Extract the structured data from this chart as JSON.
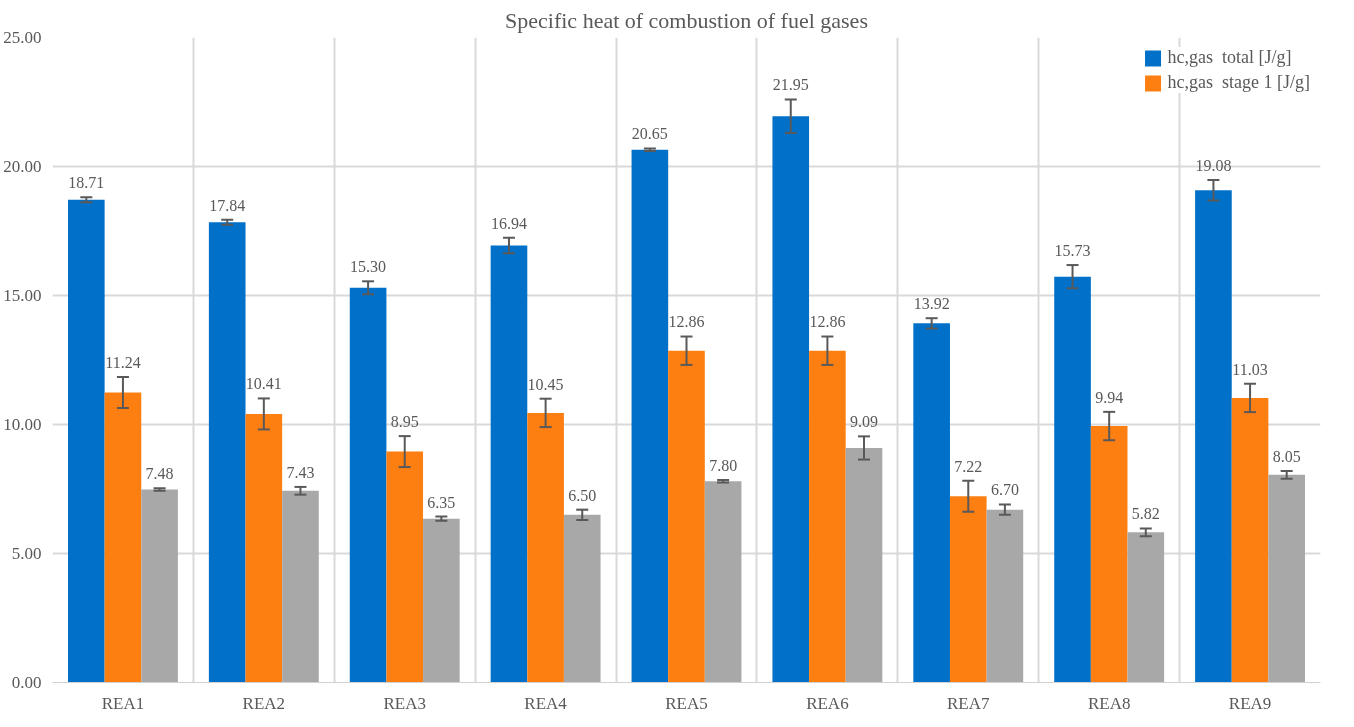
{
  "chart_data": {
    "type": "bar",
    "title": "Specific heat of combustion of fuel gases",
    "categories": [
      "REA1",
      "REA2",
      "REA3",
      "REA4",
      "REA5",
      "REA6",
      "REA7",
      "REA8",
      "REA9"
    ],
    "series": [
      {
        "name": "hc,gas  total [J/g]",
        "color": "#0070c8",
        "values": [
          18.71,
          17.84,
          15.3,
          16.94,
          20.65,
          21.95,
          13.92,
          15.73,
          19.08
        ],
        "errors": [
          0.1,
          0.1,
          0.25,
          0.3,
          0.05,
          0.65,
          0.2,
          0.45,
          0.4
        ],
        "value_labels": [
          "18.71",
          "17.84",
          "15.30",
          "16.94",
          "20.65",
          "21.95",
          "13.92",
          "15.73",
          "19.08"
        ]
      },
      {
        "name": "hc,gas  stage 1 [J/g]",
        "color": "#fd7f12",
        "values": [
          11.24,
          10.41,
          8.95,
          10.45,
          12.86,
          12.86,
          7.22,
          9.94,
          11.03
        ],
        "errors": [
          0.6,
          0.6,
          0.6,
          0.55,
          0.55,
          0.55,
          0.6,
          0.55,
          0.55
        ],
        "value_labels": [
          "11.24",
          "10.41",
          "8.95",
          "10.45",
          "12.86",
          "12.86",
          "7.22",
          "9.94",
          "11.03"
        ]
      },
      {
        "color": "#a8a8a8",
        "values": [
          7.48,
          7.43,
          6.35,
          6.5,
          7.8,
          9.09,
          6.7,
          5.82,
          8.05
        ],
        "errors": [
          0.05,
          0.15,
          0.08,
          0.2,
          0.05,
          0.45,
          0.2,
          0.15,
          0.15
        ],
        "value_labels": [
          "7.48",
          "7.43",
          "6.35",
          "6.50",
          "7.80",
          "9.09",
          "6.70",
          "5.82",
          "8.05"
        ]
      }
    ],
    "ylim": [
      0,
      25
    ],
    "yticks": [
      {
        "value": 0,
        "label": "0.00"
      },
      {
        "value": 5,
        "label": "5.00"
      },
      {
        "value": 10,
        "label": "10.00"
      },
      {
        "value": 15,
        "label": "15.00"
      },
      {
        "value": 20,
        "label": "20.00"
      },
      {
        "value": 25,
        "label": "25.00"
      }
    ],
    "grid": true,
    "legend": "top right"
  }
}
